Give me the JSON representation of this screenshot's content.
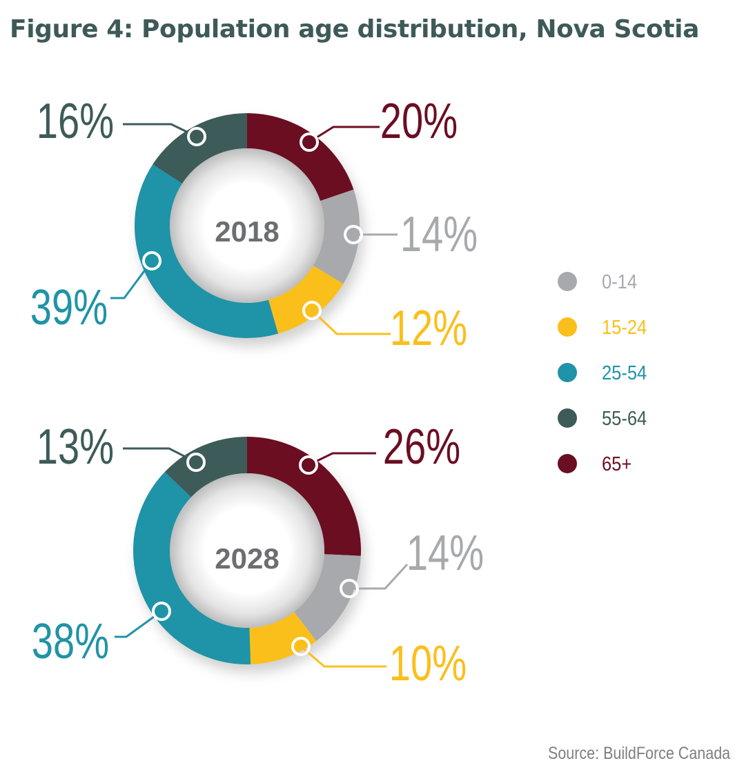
{
  "title": "Figure 4: Population age distribution, Nova Scotia",
  "source": "Source: BuildForce Canada",
  "chart_data": {
    "type": "pie",
    "variant": "donut",
    "title": "Figure 4: Population age distribution, Nova Scotia",
    "legend_position": "right",
    "categories": [
      "0-14",
      "15-24",
      "25-54",
      "55-64",
      "65+"
    ],
    "colors": {
      "0-14": "#a7a9ac",
      "15-24": "#fbbf1b",
      "25-54": "#1f93a7",
      "55-64": "#3d5b59",
      "65+": "#6b0e22"
    },
    "charts": [
      {
        "year": "2018",
        "values": {
          "65+": 20,
          "0-14": 14,
          "15-24": 12,
          "25-54": 39,
          "55-64": 16
        },
        "labels": {
          "65+": "20%",
          "0-14": "14%",
          "15-24": "12%",
          "25-54": "39%",
          "55-64": "16%"
        }
      },
      {
        "year": "2028",
        "values": {
          "65+": 26,
          "0-14": 14,
          "15-24": 10,
          "25-54": 38,
          "55-64": 13
        },
        "labels": {
          "65+": "26%",
          "0-14": "14%",
          "15-24": "10%",
          "25-54": "38%",
          "55-64": "13%"
        }
      }
    ]
  }
}
